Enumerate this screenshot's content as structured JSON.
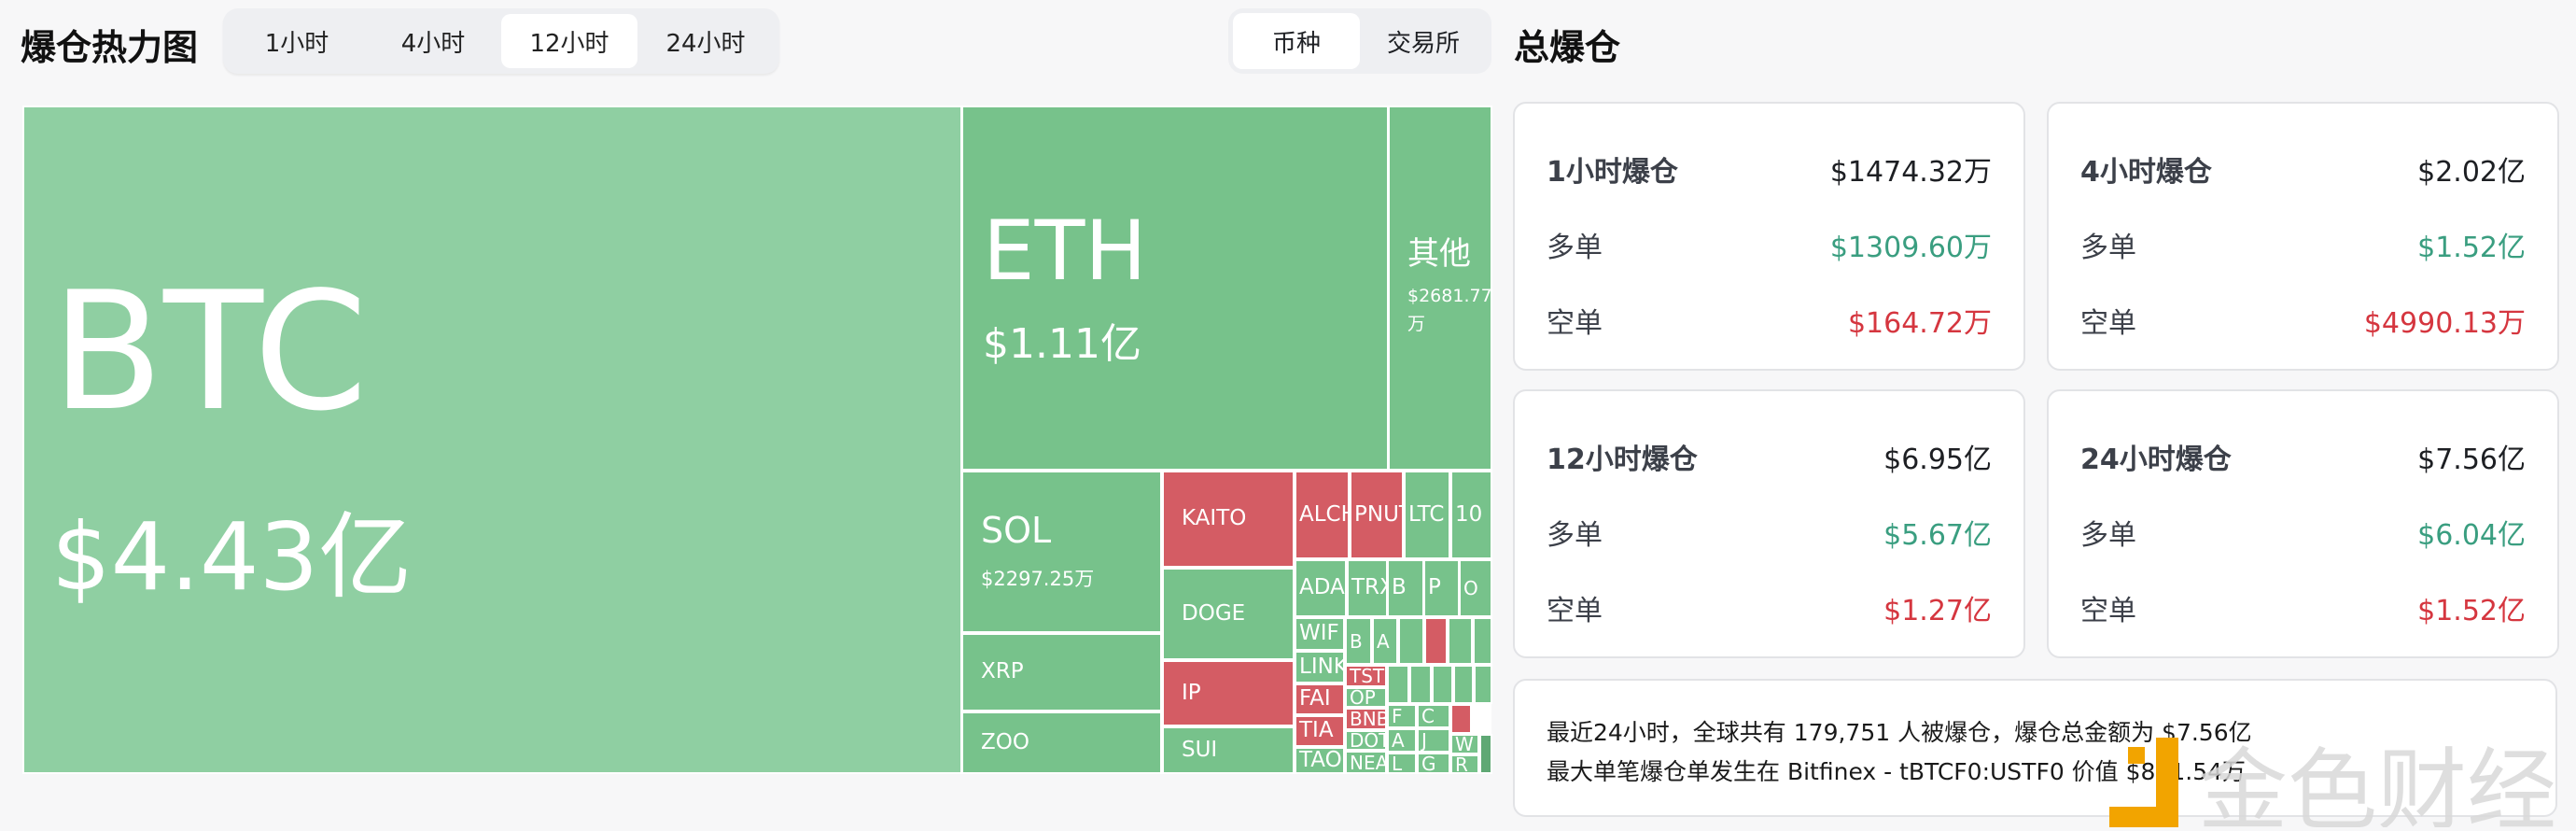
{
  "header": {
    "title": "爆仓热力图",
    "tabs": [
      "1小时",
      "4小时",
      "12小时",
      "24小时"
    ],
    "selected_tab": "12小时",
    "toggle": [
      "币种",
      "交易所"
    ],
    "selected_toggle": "币种"
  },
  "total": {
    "title": "总爆仓",
    "cards": [
      {
        "label": "1小时爆仓",
        "total": "$1474.32万",
        "long_label": "多单",
        "long": "$1309.60万",
        "short_label": "空单",
        "short": "$164.72万"
      },
      {
        "label": "4小时爆仓",
        "total": "$2.02亿",
        "long_label": "多单",
        "long": "$1.52亿",
        "short_label": "空单",
        "short": "$4990.13万"
      },
      {
        "label": "12小时爆仓",
        "total": "$6.95亿",
        "long_label": "多单",
        "long": "$5.67亿",
        "short_label": "空单",
        "short": "$1.27亿"
      },
      {
        "label": "24小时爆仓",
        "total": "$7.56亿",
        "long_label": "多单",
        "long": "$6.04亿",
        "short_label": "空单",
        "short": "$1.52亿"
      }
    ],
    "summary_line1": "最近24小时，全球共有 179,751 人被爆仓，爆仓总金额为 $7.56亿",
    "summary_line2": "最大单笔爆仓单发生在 Bitfinex - tBTCF0:USTF0 价值 $821.54万"
  },
  "colors": {
    "btc": "#8fcfa2",
    "long": "#77c28b",
    "short": "#d45c64",
    "dark": "#5fa874",
    "green_text": "#3a9e80",
    "red_text": "#d5363f"
  },
  "treemap": [
    {
      "name": "BTC",
      "value": "$4.43亿",
      "c": "btc"
    },
    {
      "name": "ETH",
      "value": "$1.11亿",
      "c": "long"
    },
    {
      "name": "其他",
      "value": "$2681.77万",
      "c": "long"
    },
    {
      "name": "SOL",
      "value": "$2297.25万",
      "c": "long"
    },
    {
      "name": "XRP",
      "c": "long"
    },
    {
      "name": "ZOO",
      "c": "long"
    },
    {
      "name": "KAITO",
      "c": "short"
    },
    {
      "name": "DOGE",
      "c": "long"
    },
    {
      "name": "IP",
      "c": "short"
    },
    {
      "name": "SUI",
      "c": "long"
    },
    {
      "name": "ALCH",
      "c": "short"
    },
    {
      "name": "PNUT",
      "c": "short"
    },
    {
      "name": "LTC",
      "c": "long"
    },
    {
      "name": "10",
      "c": "long"
    },
    {
      "name": "ADA",
      "c": "long"
    },
    {
      "name": "TRX",
      "c": "long"
    },
    {
      "name": "B",
      "c": "long"
    },
    {
      "name": "P",
      "c": "long"
    },
    {
      "name": "O",
      "c": "long"
    },
    {
      "name": "WIF",
      "c": "long"
    },
    {
      "name": "LINK",
      "c": "long"
    },
    {
      "name": "FAI",
      "c": "short"
    },
    {
      "name": "TIA",
      "c": "short"
    },
    {
      "name": "TAO",
      "c": "long"
    },
    {
      "name": "B",
      "c": "long"
    },
    {
      "name": "A",
      "c": "long"
    },
    {
      "name": "",
      "c": "long"
    },
    {
      "name": "",
      "c": "short"
    },
    {
      "name": "",
      "c": "long"
    },
    {
      "name": "",
      "c": "long"
    },
    {
      "name": "TST",
      "c": "short"
    },
    {
      "name": "OP",
      "c": "long"
    },
    {
      "name": "BNB",
      "c": "short"
    },
    {
      "name": "DOT",
      "c": "long"
    },
    {
      "name": "NEAR",
      "c": "long"
    },
    {
      "name": "",
      "c": "long"
    },
    {
      "name": "",
      "c": "long"
    },
    {
      "name": "",
      "c": "long"
    },
    {
      "name": "",
      "c": "long"
    },
    {
      "name": "",
      "c": "long"
    },
    {
      "name": "F",
      "c": "long"
    },
    {
      "name": "A",
      "c": "long"
    },
    {
      "name": "L",
      "c": "long"
    },
    {
      "name": "C",
      "c": "long"
    },
    {
      "name": "J",
      "c": "long"
    },
    {
      "name": "G",
      "c": "long"
    },
    {
      "name": "",
      "c": "short"
    },
    {
      "name": "W",
      "c": "long"
    },
    {
      "name": "R",
      "c": "long"
    },
    {
      "name": "",
      "c": "dark"
    }
  ],
  "watermark": "金色财经"
}
